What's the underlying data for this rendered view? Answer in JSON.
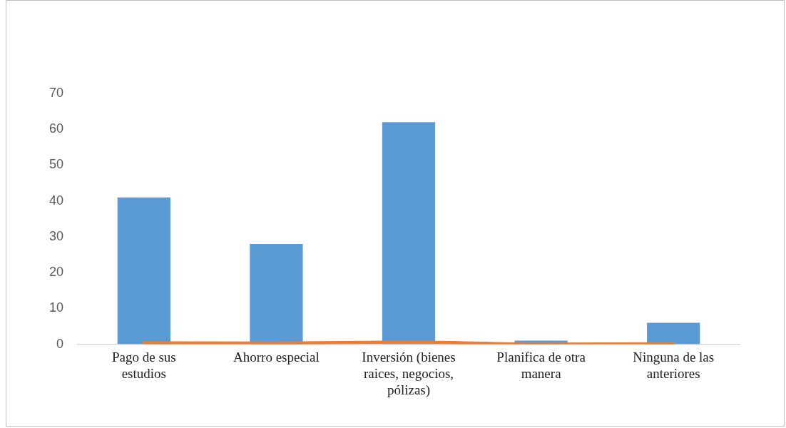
{
  "chart_data": {
    "type": "bar",
    "categories": [
      "Pago de sus estudios",
      "Ahorro especial",
      "Inversión (bienes raices, negocios, pólizas)",
      "Planifica de otra manera",
      "Ninguna de las anteriores"
    ],
    "series": [
      {
        "color": "#5b9bd5",
        "values": [
          41,
          28,
          62,
          1,
          6
        ]
      },
      {
        "type": "line",
        "color": "#ed7d31",
        "values": [
          0.4,
          0.3,
          0.6,
          0,
          0.1
        ]
      }
    ],
    "ylim": [
      0,
      70
    ],
    "yticks": [
      0,
      10,
      20,
      30,
      40,
      50,
      60,
      70
    ],
    "grid": false,
    "legend": false,
    "marker": "none",
    "line_style": "solid"
  }
}
